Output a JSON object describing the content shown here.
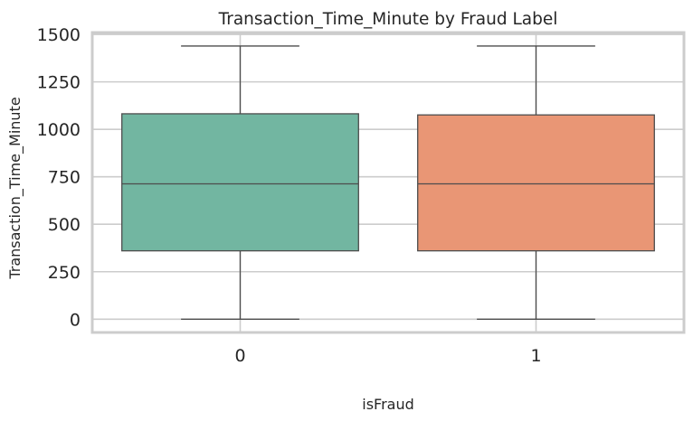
{
  "chart_data": {
    "type": "box",
    "title": "Transaction_Time_Minute by Fraud Label",
    "xlabel": "isFraud",
    "ylabel": "Transaction_Time_Minute",
    "categories": [
      "0",
      "1"
    ],
    "ylim": [
      -70,
      1510
    ],
    "yticks": [
      0,
      250,
      500,
      750,
      1000,
      1250,
      1500
    ],
    "grid": true,
    "boxes": [
      {
        "category": "0",
        "min": 0,
        "q1": 360,
        "median": 713,
        "q3": 1082,
        "max": 1439,
        "color": "#72b6a1"
      },
      {
        "category": "1",
        "min": 0,
        "q1": 360,
        "median": 713,
        "q3": 1076,
        "max": 1439,
        "color": "#e99675"
      }
    ]
  },
  "style": {
    "grid_color": "#cccccc",
    "spine_color": "#cccccc",
    "line_color": "#4d4d4d",
    "text_color": "#262626"
  }
}
